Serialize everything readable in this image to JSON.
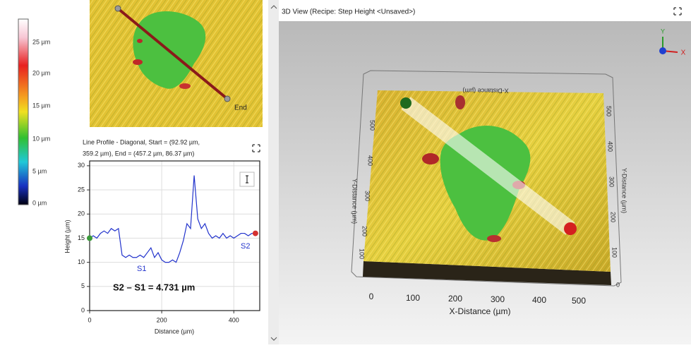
{
  "color_scale": {
    "labels": [
      "25 µm",
      "20 µm",
      "15 µm",
      "10 µm",
      "5 µm",
      "0 µm"
    ]
  },
  "map_2d": {
    "end_label": "End"
  },
  "chart_data": {
    "type": "line",
    "title": [
      "Line Profile - Diagonal, Start = (92.92 µm,",
      "359.2 µm), End = (457.2 µm, 86.37 µm)"
    ],
    "x_label": "Distance (µm)",
    "y_label": "Height (µm)",
    "x": [
      0,
      10,
      20,
      30,
      40,
      50,
      60,
      70,
      80,
      90,
      100,
      110,
      120,
      130,
      140,
      150,
      160,
      170,
      180,
      190,
      200,
      210,
      220,
      230,
      240,
      250,
      260,
      270,
      280,
      290,
      300,
      310,
      320,
      330,
      340,
      350,
      360,
      370,
      380,
      390,
      400,
      410,
      420,
      430,
      440,
      450,
      460
    ],
    "values": [
      15,
      15.5,
      15,
      16,
      16.5,
      16,
      17,
      16.5,
      17,
      11.5,
      11,
      11.5,
      11,
      11,
      11.5,
      11,
      12,
      13,
      11,
      12,
      10.5,
      10,
      10,
      10.5,
      10,
      12,
      14.5,
      18,
      17,
      28,
      19,
      17,
      18,
      16,
      15,
      15.5,
      15,
      16,
      15,
      15.5,
      15,
      15.5,
      16,
      16,
      15.5,
      16,
      16
    ],
    "color": "#2233cc",
    "xlim": [
      0,
      472
    ],
    "ylim": [
      0,
      31
    ],
    "xticks": [
      0,
      200,
      400
    ],
    "yticks": [
      0,
      5,
      10,
      15,
      20,
      25,
      30
    ],
    "grid": true,
    "annotations": [
      "S1",
      "S2",
      "S2 – S1 = 4.731 µm"
    ]
  },
  "view_3d": {
    "title": "3D View (Recipe: Step Height <Unsaved>)",
    "triad": [
      "Y",
      "X"
    ],
    "x_label": "X-Distance (µm)",
    "x_label_back": "X-Distance (µm)",
    "y_label_left": "Y-Distance (µm)",
    "y_label_right": "Y-Distance (µm)",
    "x_ticks": [
      0,
      100,
      200,
      300,
      400,
      500
    ],
    "y_ticks_left": [
      500,
      400,
      300,
      200,
      100
    ],
    "y_ticks_right": [
      500,
      400,
      300,
      200,
      100,
      0
    ]
  }
}
